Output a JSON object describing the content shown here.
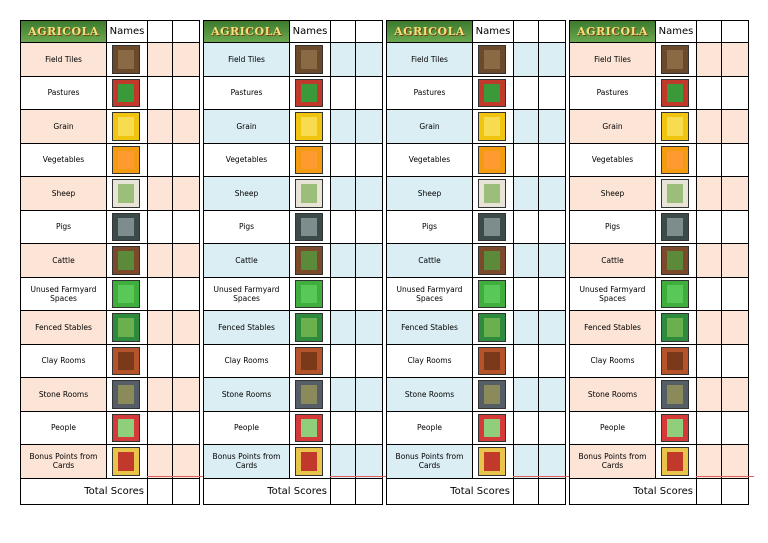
{
  "panels": [
    {
      "logo": "AGRICOLA",
      "names_header": "Names",
      "tint": "#fce4d6",
      "rows": [
        "Field Tiles",
        "Pastures",
        "Grain",
        "Vegetables",
        "Sheep",
        "Pigs",
        "Cattle",
        "Unused Farmyard Spaces",
        "Fenced Stables",
        "Clay Rooms",
        "Stone Rooms",
        "People",
        "Bonus Points from Cards"
      ],
      "total": "Total Scores"
    },
    {
      "logo": "AGRICOLA",
      "names_header": "Names",
      "tint": "#daeef3",
      "rows": [
        "Field Tiles",
        "Pastures",
        "Grain",
        "Vegetables",
        "Sheep",
        "Pigs",
        "Cattle",
        "Unused Farmyard Spaces",
        "Fenced Stables",
        "Clay Rooms",
        "Stone Rooms",
        "People",
        "Bonus Points from Cards"
      ],
      "total": "Total Scores"
    },
    {
      "logo": "AGRICOLA",
      "names_header": "Names",
      "tint": "#daeef3",
      "rows": [
        "Field Tiles",
        "Pastures",
        "Grain",
        "Vegetables",
        "Sheep",
        "Pigs",
        "Cattle",
        "Unused Farmyard Spaces",
        "Fenced Stables",
        "Clay Rooms",
        "Stone Rooms",
        "People",
        "Bonus Points from Cards"
      ],
      "total": "Total Scores"
    },
    {
      "logo": "AGRICOLA",
      "names_header": "Names",
      "tint": "#fce4d6",
      "rows": [
        "Field Tiles",
        "Pastures",
        "Grain",
        "Vegetables",
        "Sheep",
        "Pigs",
        "Cattle",
        "Unused Farmyard Spaces",
        "Fenced Stables",
        "Clay Rooms",
        "Stone Rooms",
        "People",
        "Bonus Points from Cards"
      ],
      "total": "Total Scores"
    }
  ]
}
